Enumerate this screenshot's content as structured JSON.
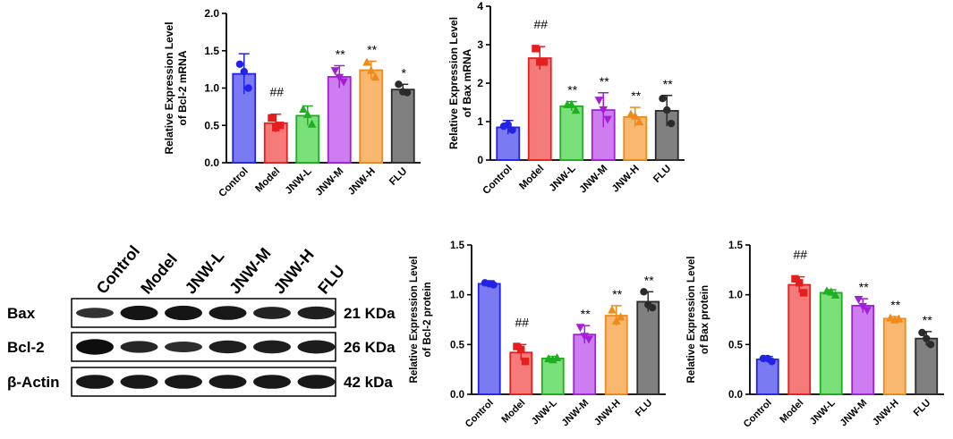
{
  "groups": [
    "Control",
    "Model",
    "JNW-L",
    "JNW-M",
    "JNW-H",
    "FLU"
  ],
  "colors": {
    "edge": [
      "#2323e6",
      "#e61e1e",
      "#1fae1f",
      "#a21fd6",
      "#f08a1a",
      "#2a2a2a"
    ],
    "fill": [
      "#7a7af2",
      "#f57a7a",
      "#7ae07a",
      "#cd7df0",
      "#f8b870",
      "#808080"
    ]
  },
  "chart_data": [
    {
      "id": "bcl2-mrna",
      "type": "bar",
      "ylabel_lines": [
        "Relative Expression Level",
        "of Bcl-2  mRNA"
      ],
      "ylim": [
        0,
        2.0
      ],
      "yticks": [
        "0.0",
        "0.5",
        "1.0",
        "1.5",
        "2.0"
      ],
      "categories": [
        "Control",
        "Model",
        "JNW-L",
        "JNW-M",
        "JNW-H",
        "FLU"
      ],
      "values": [
        1.19,
        0.53,
        0.63,
        1.15,
        1.24,
        0.98
      ],
      "errors": [
        0.27,
        0.12,
        0.13,
        0.15,
        0.12,
        0.07
      ],
      "points": [
        [
          1.32,
          1.0,
          1.22
        ],
        [
          0.6,
          0.5,
          0.47
        ],
        [
          0.72,
          0.52,
          0.65
        ],
        [
          1.23,
          1.08,
          1.14
        ],
        [
          1.35,
          1.15,
          1.24
        ],
        [
          1.05,
          0.94,
          0.95
        ]
      ],
      "annotations": [
        "",
        "##",
        "",
        "**",
        "**",
        "*"
      ]
    },
    {
      "id": "bax-mrna",
      "type": "bar",
      "ylabel_lines": [
        "Relative Expression Level",
        "of Bax mRNA"
      ],
      "ylim": [
        0,
        4
      ],
      "yticks": [
        "0",
        "1",
        "2",
        "3",
        "4"
      ],
      "categories": [
        "Control",
        "Model",
        "JNW-L",
        "JNW-M",
        "JNW-H",
        "FLU"
      ],
      "values": [
        0.85,
        2.65,
        1.4,
        1.3,
        1.12,
        1.28
      ],
      "errors": [
        0.18,
        0.3,
        0.12,
        0.45,
        0.25,
        0.4
      ],
      "points": [
        [
          0.88,
          0.78,
          0.92
        ],
        [
          2.9,
          2.55,
          2.55
        ],
        [
          1.45,
          1.3,
          1.45
        ],
        [
          1.55,
          1.05,
          1.3
        ],
        [
          1.2,
          1.0,
          1.15
        ],
        [
          1.6,
          0.95,
          1.3
        ]
      ],
      "annotations": [
        "",
        "##",
        "**",
        "**",
        "**",
        "**"
      ]
    },
    {
      "id": "bcl2-protein",
      "type": "bar",
      "ylabel_lines": [
        "Relative Expression Level",
        "of Bcl-2 protein"
      ],
      "ylim": [
        0,
        1.5
      ],
      "yticks": [
        "0.0",
        "0.5",
        "1.0",
        "1.5"
      ],
      "categories": [
        "Control",
        "Model",
        "JNW-L",
        "JNW-M",
        "JNW-H",
        "FLU"
      ],
      "values": [
        1.11,
        0.42,
        0.36,
        0.6,
        0.79,
        0.93
      ],
      "errors": [
        0.03,
        0.08,
        0.02,
        0.09,
        0.1,
        0.1
      ],
      "points": [
        [
          1.12,
          1.1,
          1.11
        ],
        [
          0.48,
          0.33,
          0.45
        ],
        [
          0.36,
          0.37,
          0.35
        ],
        [
          0.67,
          0.55,
          0.58
        ],
        [
          0.85,
          0.78,
          0.74
        ],
        [
          1.03,
          0.87,
          0.9
        ]
      ],
      "annotations": [
        "",
        "##",
        "",
        "**",
        "**",
        "**"
      ]
    },
    {
      "id": "bax-protein",
      "type": "bar",
      "ylabel_lines": [
        "Relative Expression Level",
        "of Bax protein"
      ],
      "ylim": [
        0,
        1.5
      ],
      "yticks": [
        "0.0",
        "0.5",
        "1.0",
        "1.5"
      ],
      "categories": [
        "Control",
        "Model",
        "JNW-L",
        "JNW-M",
        "JNW-H",
        "FLU"
      ],
      "values": [
        0.35,
        1.1,
        1.02,
        0.89,
        0.76,
        0.56
      ],
      "errors": [
        0.03,
        0.08,
        0.03,
        0.07,
        0.02,
        0.07
      ],
      "points": [
        [
          0.36,
          0.33,
          0.36
        ],
        [
          1.16,
          1.02,
          1.12
        ],
        [
          1.04,
          1.0,
          1.03
        ],
        [
          0.95,
          0.84,
          0.88
        ],
        [
          0.77,
          0.76,
          0.75
        ],
        [
          0.62,
          0.5,
          0.56
        ]
      ],
      "annotations": [
        "",
        "##",
        "",
        "**",
        "**",
        "**"
      ]
    }
  ],
  "blot": {
    "lane_labels": [
      "Control",
      "Model",
      "JNW-L",
      "JNW-M",
      "JNW-H",
      "FLU"
    ],
    "rows": [
      {
        "name": "Bax",
        "size": "21 KDa",
        "intensity": [
          0.45,
          0.85,
          0.85,
          0.8,
          0.65,
          0.7
        ]
      },
      {
        "name": "Bcl-2",
        "size": "26 KDa",
        "intensity": [
          0.95,
          0.6,
          0.5,
          0.7,
          0.72,
          0.75
        ]
      },
      {
        "name": "β-Actin",
        "size": "42 kDa",
        "intensity": [
          0.8,
          0.8,
          0.8,
          0.8,
          0.8,
          0.8
        ]
      }
    ]
  }
}
